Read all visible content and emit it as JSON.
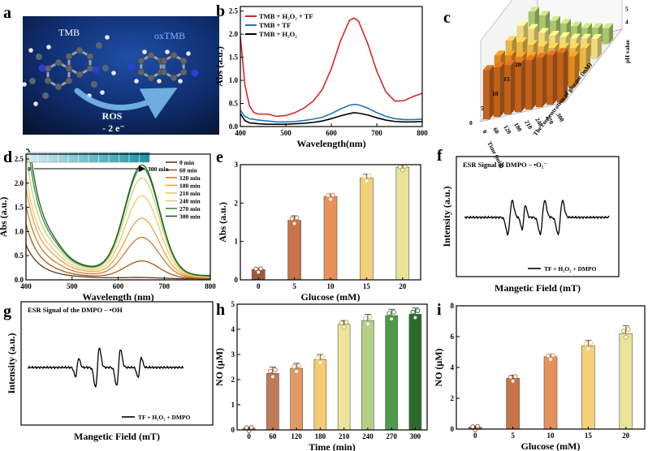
{
  "panel_letters": [
    "a",
    "b",
    "c",
    "d",
    "e",
    "f",
    "g",
    "h",
    "i"
  ],
  "colors": {
    "red": "#d62728",
    "blue": "#1f77b4",
    "black": "#000000",
    "a_bg_dark": "#0b1a44",
    "a_bg_mid": "#12367a",
    "arrow": "#5fa8e6"
  },
  "scheme_a": {
    "left_label": "TMB",
    "right_label": "oxTMB",
    "ros_label": "ROS",
    "electron_label": "- 2 e⁻"
  },
  "chart_data": [
    {
      "id": "b",
      "type": "line",
      "title": "",
      "xlabel": "Wavelength(nm)",
      "ylabel": "Abs (a.u.)",
      "xlim": [
        400,
        800
      ],
      "ylim": [
        0,
        2.6
      ],
      "xticks": [
        400,
        500,
        600,
        700,
        800
      ],
      "yticks": [
        0.0,
        0.5,
        1.0,
        1.5,
        2.0,
        2.5
      ],
      "legend_position": "top-left",
      "series": [
        {
          "name": "TMB + H₂O₂ + TF",
          "color": "#d62728",
          "x": [
            400,
            410,
            420,
            430,
            440,
            460,
            480,
            500,
            520,
            540,
            560,
            580,
            600,
            620,
            640,
            650,
            660,
            680,
            700,
            720,
            740,
            760,
            780,
            800
          ],
          "y": [
            1.95,
            0.9,
            0.45,
            0.3,
            0.27,
            0.27,
            0.22,
            0.24,
            0.3,
            0.4,
            0.55,
            0.8,
            1.25,
            1.85,
            2.3,
            2.35,
            2.28,
            1.8,
            1.2,
            0.75,
            0.55,
            0.56,
            0.65,
            0.72
          ]
        },
        {
          "name": "TMB + TF",
          "color": "#1f77b4",
          "x": [
            400,
            410,
            420,
            440,
            460,
            480,
            500,
            520,
            540,
            560,
            580,
            600,
            620,
            640,
            650,
            660,
            680,
            700,
            720,
            740,
            760,
            780,
            800
          ],
          "y": [
            0.35,
            0.22,
            0.17,
            0.14,
            0.12,
            0.1,
            0.1,
            0.11,
            0.13,
            0.16,
            0.2,
            0.28,
            0.38,
            0.46,
            0.48,
            0.47,
            0.4,
            0.3,
            0.22,
            0.17,
            0.15,
            0.15,
            0.16
          ]
        },
        {
          "name": "TMB + H₂O₂",
          "color": "#000000",
          "x": [
            400,
            410,
            420,
            440,
            460,
            480,
            500,
            520,
            540,
            560,
            580,
            600,
            620,
            640,
            650,
            660,
            680,
            700,
            720,
            740,
            760,
            780,
            800
          ],
          "y": [
            0.28,
            0.13,
            0.08,
            0.06,
            0.05,
            0.05,
            0.05,
            0.06,
            0.07,
            0.09,
            0.12,
            0.17,
            0.23,
            0.28,
            0.3,
            0.29,
            0.25,
            0.19,
            0.14,
            0.11,
            0.1,
            0.1,
            0.11
          ]
        }
      ]
    },
    {
      "id": "c",
      "type": "bar3d",
      "xlabel": "Time (min)",
      "ylabel": "The concentration of glucose (mM)",
      "zlabel": "pH value",
      "time_ticks": [
        "0",
        "60",
        "120",
        "180",
        "210",
        "240",
        "270",
        "300"
      ],
      "glucose_ticks": [
        "0",
        "5",
        "10",
        "15",
        "20"
      ],
      "z_ticks": [
        "4",
        "5",
        "6",
        "7",
        "8"
      ],
      "row_colors": [
        "#c0621b",
        "#de8a1f",
        "#e9b648",
        "#efd97c",
        "#a9c670"
      ],
      "rows": [
        {
          "glucose": "0",
          "values": [
            7.4,
            7.4,
            7.4,
            7.4,
            7.4,
            7.4,
            7.4,
            7.4
          ]
        },
        {
          "glucose": "5",
          "values": [
            7.4,
            7.2,
            6.9,
            6.7,
            6.5,
            6.3,
            6.2,
            6.0
          ]
        },
        {
          "glucose": "10",
          "values": [
            7.4,
            7.1,
            6.7,
            6.4,
            6.1,
            5.9,
            5.7,
            5.5
          ]
        },
        {
          "glucose": "15",
          "values": [
            7.4,
            7.0,
            6.5,
            6.1,
            5.8,
            5.5,
            5.3,
            5.1
          ]
        },
        {
          "glucose": "20",
          "values": [
            7.4,
            6.9,
            6.3,
            5.9,
            5.5,
            5.2,
            5.0,
            4.8
          ]
        }
      ]
    },
    {
      "id": "d",
      "type": "line",
      "xlabel": "Wavelength (nm)",
      "ylabel": "Abs (a.u.)",
      "xlim": [
        400,
        800
      ],
      "ylim": [
        0,
        2.6
      ],
      "xticks": [
        400,
        500,
        600,
        700,
        800
      ],
      "yticks": [
        0.0,
        0.5,
        1.0,
        1.5,
        2.0,
        2.5
      ],
      "legend_position": "top-right",
      "inset": {
        "start_label": "0",
        "end_label": "300 min"
      },
      "series": [
        {
          "name": "0 min",
          "color": "#5c3a1c",
          "base": 0.55,
          "peak": 0.02,
          "tail": 0.15
        },
        {
          "name": "60 min",
          "color": "#a0581c",
          "base": 0.9,
          "peak": 0.35,
          "tail": 0.22
        },
        {
          "name": "120 min",
          "color": "#d47a28",
          "base": 1.15,
          "peak": 0.82,
          "tail": 0.35
        },
        {
          "name": "180 min",
          "color": "#e9a347",
          "base": 1.35,
          "peak": 1.2,
          "tail": 0.5
        },
        {
          "name": "210 min",
          "color": "#f2c86a",
          "base": 1.5,
          "peak": 1.65,
          "tail": 0.6
        },
        {
          "name": "240 min",
          "color": "#c8d67a",
          "base": 1.85,
          "peak": 2.0,
          "tail": 0.7
        },
        {
          "name": "270 min",
          "color": "#3a8f3a",
          "base": 2.3,
          "peak": 2.2,
          "tail": 0.75
        },
        {
          "name": "300 min",
          "color": "#1d5e1d",
          "base": 2.6,
          "peak": 2.25,
          "tail": 0.78
        }
      ]
    },
    {
      "id": "e",
      "type": "bar",
      "xlabel": "Glucose (mM)",
      "ylabel": "Abs (a.u.)",
      "ylim": [
        0,
        3
      ],
      "yticks": [
        0,
        1,
        2,
        3
      ],
      "categories": [
        "0",
        "5",
        "10",
        "15",
        "20"
      ],
      "values": [
        0.27,
        1.55,
        2.17,
        2.65,
        2.93
      ],
      "errors": [
        0.04,
        0.12,
        0.07,
        0.1,
        0.05
      ],
      "colors": [
        "#a0583a",
        "#c8734a",
        "#e7915a",
        "#f3cf78",
        "#e8e59a"
      ]
    },
    {
      "id": "f",
      "type": "line",
      "xlabel": "Mangetic Field (mT)",
      "ylabel": "Intensity (a.u.)",
      "title": "ESR Signal of  DMPO –  •O₂⁻",
      "legend": "TF + H₂O₂ + DMPO"
    },
    {
      "id": "g",
      "type": "line",
      "xlabel": "Mangetic Field (mT)",
      "ylabel": "Intensity (a.u.)",
      "title": "ESR Signal of the DMPO –  •OH",
      "legend": "TF + H₂O₂ + DMPO"
    },
    {
      "id": "h",
      "type": "bar",
      "xlabel": "Time (min)",
      "ylabel": "NO (μM)",
      "ylim": [
        0,
        5
      ],
      "yticks": [
        0,
        1,
        2,
        3,
        4,
        5
      ],
      "categories": [
        "0",
        "60",
        "120",
        "180",
        "210",
        "240",
        "270",
        "300"
      ],
      "values": [
        0.07,
        2.25,
        2.45,
        2.8,
        4.2,
        4.35,
        4.55,
        4.6
      ],
      "errors": [
        0.05,
        0.25,
        0.2,
        0.2,
        0.15,
        0.25,
        0.25,
        0.25
      ],
      "colors": [
        "#a0583a",
        "#c07a58",
        "#e09a62",
        "#f4cb74",
        "#eee39a",
        "#b6cf86",
        "#4e9a4a",
        "#2a6a2a"
      ]
    },
    {
      "id": "i",
      "type": "bar",
      "xlabel": "Glucose (mM)",
      "ylabel": "NO (μM)",
      "ylim": [
        0,
        8
      ],
      "yticks": [
        0,
        2,
        4,
        6,
        8
      ],
      "categories": [
        "0",
        "5",
        "10",
        "15",
        "20"
      ],
      "values": [
        0.12,
        3.3,
        4.7,
        5.4,
        6.2
      ],
      "errors": [
        0.1,
        0.2,
        0.15,
        0.35,
        0.5
      ],
      "colors": [
        "#a0583a",
        "#c8734a",
        "#e7915a",
        "#f3cf78",
        "#e8e59a"
      ]
    }
  ]
}
